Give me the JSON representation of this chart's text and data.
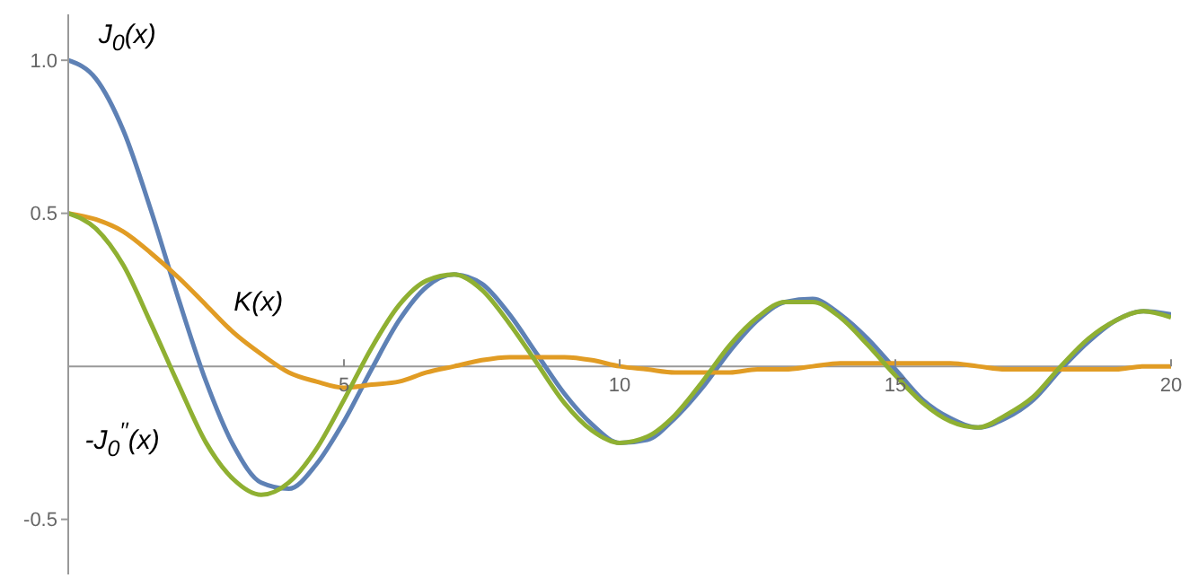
{
  "chart_data": {
    "type": "line",
    "x": [
      0,
      0.5,
      1,
      1.5,
      2,
      2.5,
      3,
      3.5,
      4,
      4.5,
      5,
      5.5,
      6,
      6.5,
      7,
      7.5,
      8,
      8.5,
      9,
      9.5,
      10,
      10.5,
      11,
      11.5,
      12,
      12.5,
      13,
      13.5,
      14,
      14.5,
      15,
      15.5,
      16,
      16.5,
      17,
      17.5,
      18,
      18.5,
      19,
      19.5,
      20
    ],
    "series": [
      {
        "name": "J$_{0}$(x)",
        "color": "#5e81b5",
        "values": [
          1,
          0.94,
          0.77,
          0.51,
          0.22,
          -0.05,
          -0.26,
          -0.38,
          -0.4,
          -0.32,
          -0.18,
          -0.01,
          0.15,
          0.26,
          0.3,
          0.27,
          0.17,
          0.04,
          -0.09,
          -0.19,
          -0.25,
          -0.24,
          -0.17,
          -0.07,
          0.05,
          0.15,
          0.21,
          0.22,
          0.17,
          0.09,
          -0.01,
          -0.11,
          -0.17,
          -0.2,
          -0.17,
          -0.11,
          -0.01,
          0.08,
          0.15,
          0.18,
          0.17
        ]
      },
      {
        "name": "K(x)",
        "color": "#e19c24",
        "values": [
          0.5,
          0.48,
          0.44,
          0.37,
          0.29,
          0.2,
          0.11,
          0.04,
          -0.02,
          -0.05,
          -0.07,
          -0.06,
          -0.05,
          -0.02,
          0,
          0.02,
          0.03,
          0.03,
          0.03,
          0.02,
          0,
          -0.01,
          -0.02,
          -0.02,
          -0.02,
          -0.01,
          -0.01,
          0,
          0.01,
          0.01,
          0.01,
          0.01,
          0.01,
          0,
          -0.01,
          -0.01,
          -0.01,
          -0.01,
          -0.01,
          0,
          0
        ]
      },
      {
        "name": "-J$_{0}$$^{′′}$(x)",
        "color": "#8fb032",
        "values": [
          0.5,
          0.45,
          0.33,
          0.14,
          -0.06,
          -0.25,
          -0.37,
          -0.42,
          -0.38,
          -0.27,
          -0.11,
          0.06,
          0.2,
          0.28,
          0.3,
          0.25,
          0.14,
          0.01,
          -0.12,
          -0.21,
          -0.25,
          -0.23,
          -0.16,
          -0.05,
          0.07,
          0.16,
          0.21,
          0.21,
          0.16,
          0.07,
          -0.03,
          -0.12,
          -0.18,
          -0.2,
          -0.16,
          -0.1,
          0,
          0.09,
          0.15,
          0.18,
          0.16
        ]
      }
    ],
    "xlim": [
      0,
      20
    ],
    "ylim": [
      -0.68,
      1.15
    ],
    "xticks": [
      5,
      10,
      15,
      20
    ],
    "yticks": [
      -0.5,
      0.5,
      {
        "value": 1,
        "label": "1.0"
      }
    ]
  }
}
